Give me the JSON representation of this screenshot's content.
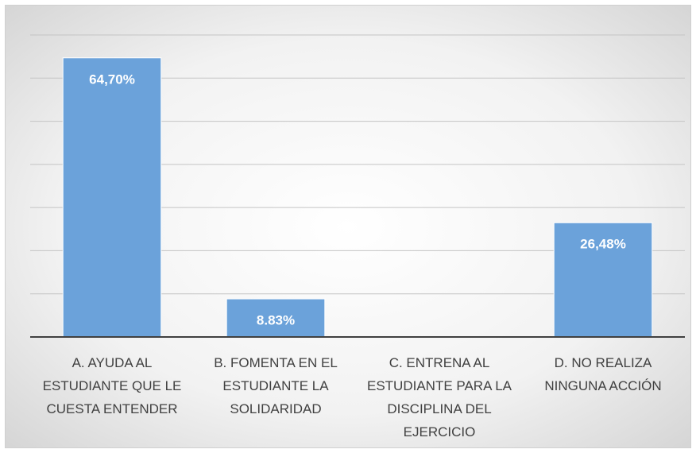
{
  "chart_data": {
    "type": "bar",
    "categories": [
      "A. AYUDA AL ESTUDIANTE QUE LE CUESTA ENTENDER",
      "B. FOMENTA EN EL ESTUDIANTE LA SOLIDARIDAD",
      "C. ENTRENA AL ESTUDIANTE PARA LA DISCIPLINA DEL EJERCICIO",
      "D. NO REALIZA NINGUNA ACCIÓN"
    ],
    "values": [
      64.7,
      8.83,
      0,
      26.48
    ],
    "value_labels": [
      "64,70%",
      "8.83%",
      null,
      "26,48%"
    ],
    "color": "#6ba2da",
    "ylim": [
      0,
      70
    ],
    "yticks": [
      0,
      10,
      20,
      30,
      40,
      50,
      60,
      70
    ],
    "grid": true
  }
}
